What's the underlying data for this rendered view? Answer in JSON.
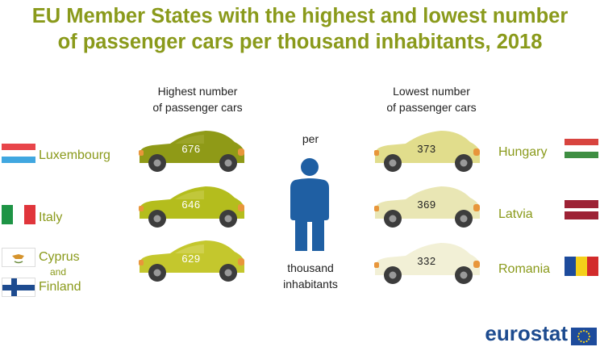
{
  "title_line1": "EU Member States with the highest and lowest number",
  "title_line2": "of passenger cars per thousand inhabitants, 2018",
  "highest_label_line1": "Highest number",
  "highest_label_line2": "of passenger cars",
  "lowest_label_line1": "Lowest number",
  "lowest_label_line2": "of passenger cars",
  "center_top": "per",
  "center_bottom_line1": "thousand",
  "center_bottom_line2": "inhabitants",
  "highest": [
    {
      "country": "Luxembourg",
      "value": "676"
    },
    {
      "country": "Italy",
      "value": "646"
    },
    {
      "country_a": "Cyprus",
      "joiner": "and",
      "country_b": "Finland",
      "value": "629"
    }
  ],
  "lowest": [
    {
      "country": "Hungary",
      "value": "373"
    },
    {
      "country": "Latvia",
      "value": "369"
    },
    {
      "country": "Romania",
      "value": "332"
    }
  ],
  "brand": "eurostat",
  "colors": {
    "title": "#8a9a1b",
    "car_676": "#8f9a17",
    "car_646": "#b4bd1d",
    "car_629": "#c4c72d",
    "car_373": "#e1dd8c",
    "car_369": "#e9e6b4",
    "car_332": "#f2f0d6",
    "person": "#1f5fa3"
  }
}
